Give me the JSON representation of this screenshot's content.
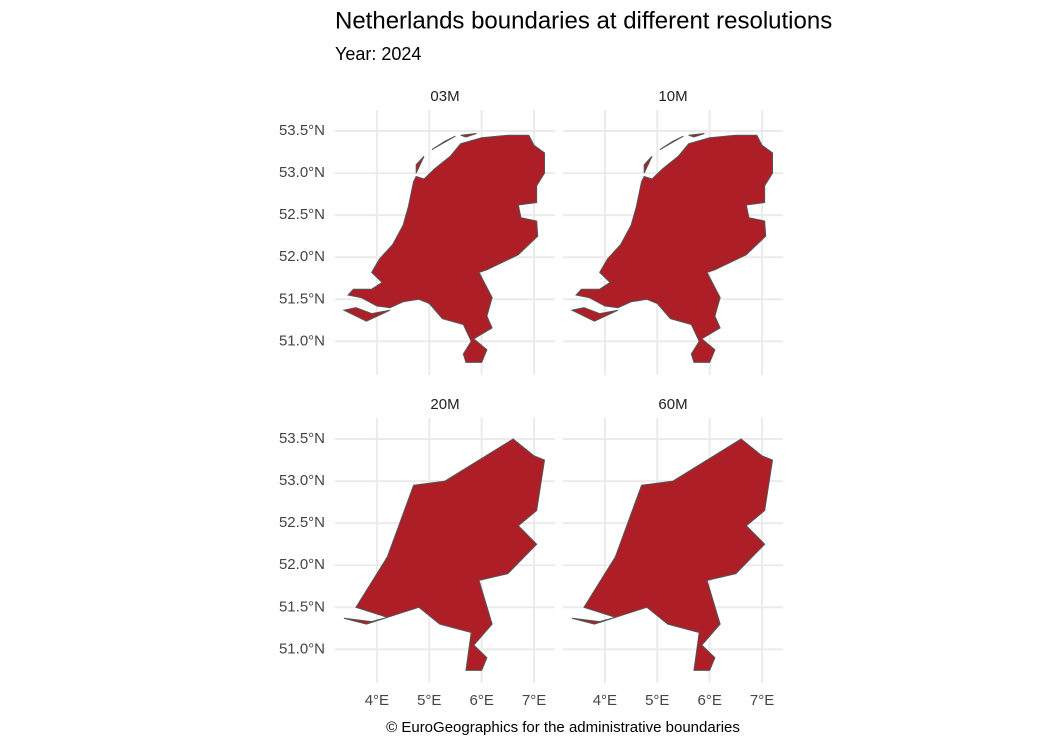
{
  "title": "Netherlands boundaries at different resolutions",
  "subtitle": "Year: 2024",
  "caption": "© EuroGeographics for the administrative boundaries",
  "panels": [
    {
      "label": "03M"
    },
    {
      "label": "10M"
    },
    {
      "label": "20M"
    },
    {
      "label": "60M"
    }
  ],
  "xlim": [
    3.2,
    7.4
  ],
  "ylim": [
    50.6,
    53.75
  ],
  "xticks": [
    {
      "value": 4,
      "label": "4°E"
    },
    {
      "value": 5,
      "label": "5°E"
    },
    {
      "value": 6,
      "label": "6°E"
    },
    {
      "value": 7,
      "label": "7°E"
    }
  ],
  "yticks": [
    {
      "value": 51,
      "label": "51.0°N"
    },
    {
      "value": 51.5,
      "label": "51.5°N"
    },
    {
      "value": 52,
      "label": "52.0°N"
    },
    {
      "value": 52.5,
      "label": "52.5°N"
    },
    {
      "value": 53,
      "label": "53.0°N"
    },
    {
      "value": 53.5,
      "label": "53.5°N"
    }
  ]
}
